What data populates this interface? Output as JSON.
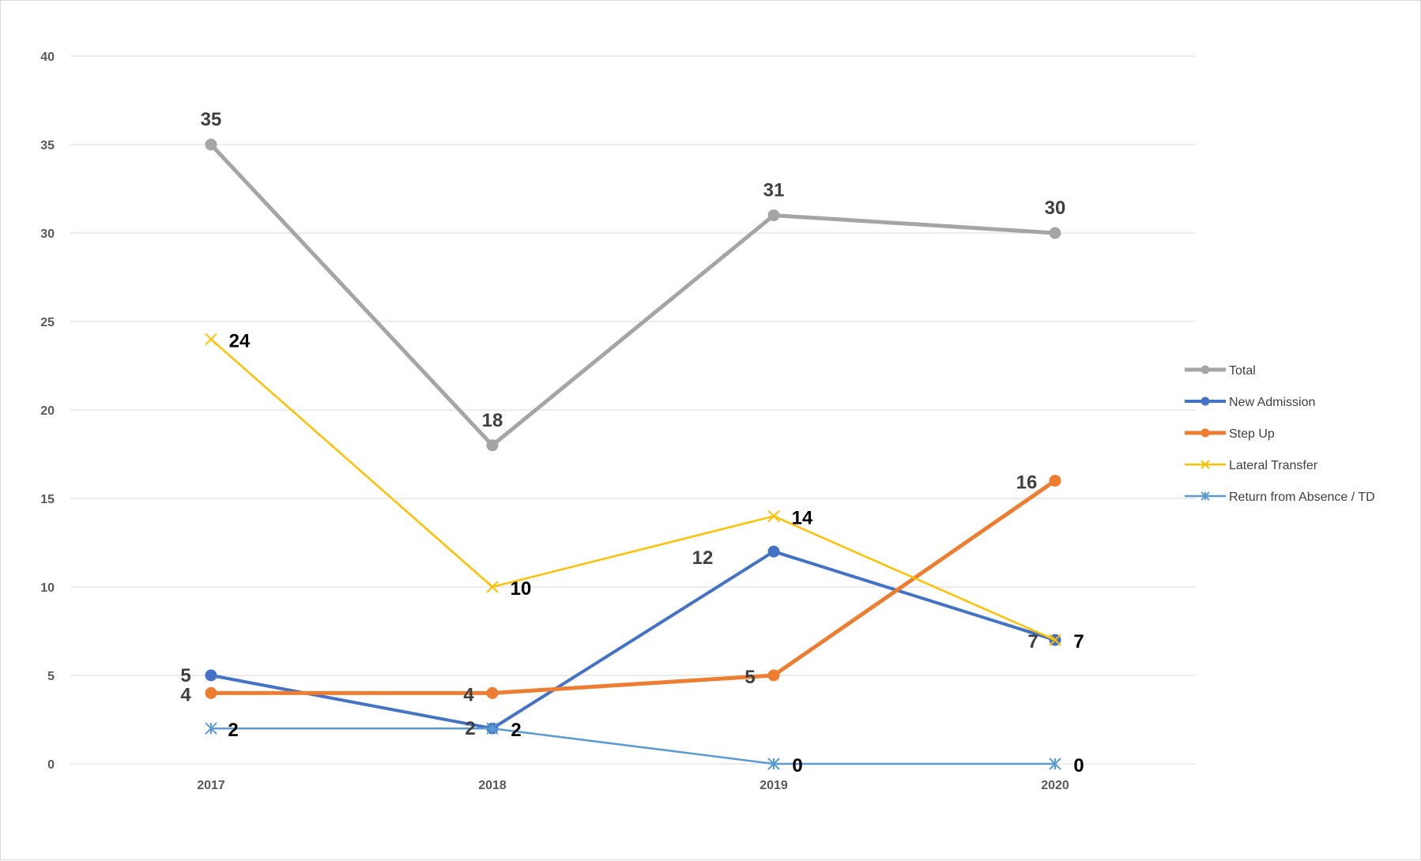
{
  "chart_data": {
    "type": "line",
    "title": "",
    "xlabel": "",
    "ylabel": "",
    "categories": [
      "2017",
      "2018",
      "2019",
      "2020"
    ],
    "y_ticks": [
      "0",
      "5",
      "10",
      "15",
      "20",
      "25",
      "30",
      "35",
      "40"
    ],
    "ylim": [
      0,
      40
    ],
    "grid": "horizontal",
    "legend_position": "right",
    "series": [
      {
        "name": "Total",
        "values": [
          35,
          18,
          31,
          30
        ],
        "labels": [
          "35",
          "18",
          "31",
          "30"
        ],
        "color": "#a5a5a5",
        "marker": "circle",
        "label_color": "#404040"
      },
      {
        "name": "New Admission",
        "values": [
          5,
          2,
          12,
          7
        ],
        "labels": [
          "5",
          "2",
          "12",
          "7"
        ],
        "color": "#4472c4",
        "marker": "circle",
        "label_color": "#404040"
      },
      {
        "name": "Step Up",
        "values": [
          4,
          4,
          5,
          16
        ],
        "labels": [
          "4",
          "4",
          "5",
          "16"
        ],
        "color": "#ed7d31",
        "marker": "circle",
        "label_color": "#404040"
      },
      {
        "name": "Lateral Transfer",
        "values": [
          24,
          10,
          14,
          7
        ],
        "labels": [
          "24",
          "10",
          "14",
          "7"
        ],
        "color": "#ffc000",
        "marker": "x",
        "label_color": "#000000"
      },
      {
        "name": "Return from Absence / TD",
        "values": [
          2,
          2,
          0,
          0
        ],
        "labels": [
          "2",
          "2",
          "0",
          "0"
        ],
        "color": "#5b9bd5",
        "marker": "star",
        "label_color": "#000000"
      }
    ]
  }
}
